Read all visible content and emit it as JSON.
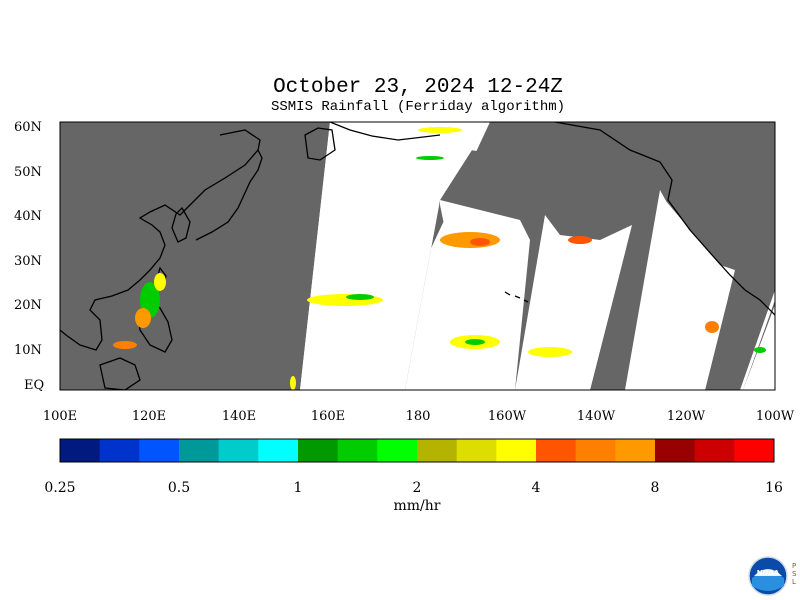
{
  "map": {
    "title": "October 23, 2024 12-24Z",
    "subtitle": "SSMIS Rainfall (Ferriday algorithm)",
    "lat_labels": [
      "60N",
      "50N",
      "40N",
      "30N",
      "20N",
      "10N",
      "EQ"
    ],
    "lon_labels": [
      "100E",
      "120E",
      "140E",
      "160E",
      "180",
      "160W",
      "140W",
      "120W",
      "100W"
    ],
    "no_data_color": "#666666",
    "land_outline_color": "#000000"
  },
  "colorbar": {
    "unit_label": "mm/hr",
    "tick_labels": [
      "0.25",
      "0.5",
      "1",
      "2",
      "4",
      "8",
      "16"
    ],
    "colors": [
      "#001a80",
      "#0033cc",
      "#0055ff",
      "#009999",
      "#00cccc",
      "#00ffff",
      "#009900",
      "#00cc00",
      "#00ff00",
      "#b3b300",
      "#dddd00",
      "#ffff00",
      "#ff5500",
      "#ff7f00",
      "#ff9900",
      "#990000",
      "#cc0000",
      "#ff0000"
    ]
  },
  "logo": {
    "name": "NOAA",
    "side_text": "PSL"
  }
}
